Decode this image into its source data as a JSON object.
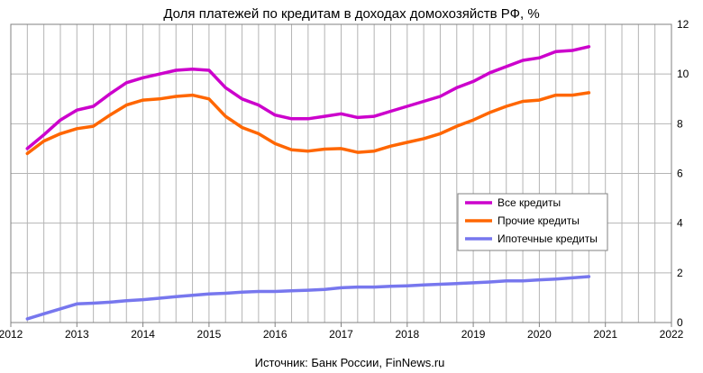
{
  "chart_data": {
    "type": "line",
    "title": "Доля платежей по кредитам в доходах домохозяйств РФ, %",
    "source": "Источник: Банк России, FinNews.ru",
    "x_ticks": [
      "2012",
      "2013",
      "2014",
      "2015",
      "2016",
      "2017",
      "2018",
      "2019",
      "2020",
      "2021",
      "2022"
    ],
    "y_ticks": [
      "0",
      "2",
      "4",
      "6",
      "8",
      "10",
      "12"
    ],
    "xlim": [
      2012,
      2022
    ],
    "ylim": [
      0,
      12
    ],
    "grid": true,
    "legend_position": "right",
    "x": [
      2012.25,
      2012.5,
      2012.75,
      2013.0,
      2013.25,
      2013.5,
      2013.75,
      2014.0,
      2014.25,
      2014.5,
      2014.75,
      2015.0,
      2015.25,
      2015.5,
      2015.75,
      2016.0,
      2016.25,
      2016.5,
      2016.75,
      2017.0,
      2017.25,
      2017.5,
      2017.75,
      2018.0,
      2018.25,
      2018.5,
      2018.75,
      2019.0,
      2019.25,
      2019.5,
      2019.75,
      2020.0,
      2020.25,
      2020.5,
      2020.75
    ],
    "series": [
      {
        "name": "Все кредиты",
        "color": "#cc00cc",
        "values": [
          7.0,
          7.55,
          8.15,
          8.55,
          8.7,
          9.2,
          9.65,
          9.85,
          10.0,
          10.15,
          10.2,
          10.15,
          9.45,
          9.0,
          8.75,
          8.35,
          8.2,
          8.2,
          8.3,
          8.4,
          8.25,
          8.3,
          8.5,
          8.7,
          8.9,
          9.1,
          9.45,
          9.7,
          10.05,
          10.3,
          10.55,
          10.65,
          10.9,
          10.95,
          11.1
        ]
      },
      {
        "name": "Прочие кредиты",
        "color": "#ff6600",
        "values": [
          6.8,
          7.3,
          7.6,
          7.8,
          7.9,
          8.35,
          8.75,
          8.95,
          9.0,
          9.1,
          9.15,
          9.0,
          8.3,
          7.85,
          7.6,
          7.2,
          6.95,
          6.9,
          6.98,
          7.0,
          6.85,
          6.9,
          7.1,
          7.25,
          7.4,
          7.6,
          7.9,
          8.15,
          8.45,
          8.7,
          8.9,
          8.95,
          9.15,
          9.15,
          9.25
        ]
      },
      {
        "name": "Ипотечные кредиты",
        "color": "#7777ee",
        "values": [
          0.15,
          0.35,
          0.55,
          0.75,
          0.78,
          0.82,
          0.88,
          0.92,
          0.98,
          1.04,
          1.1,
          1.15,
          1.18,
          1.22,
          1.25,
          1.25,
          1.28,
          1.3,
          1.33,
          1.4,
          1.43,
          1.43,
          1.46,
          1.48,
          1.51,
          1.54,
          1.57,
          1.6,
          1.63,
          1.68,
          1.68,
          1.72,
          1.75,
          1.8,
          1.85
        ]
      }
    ]
  }
}
